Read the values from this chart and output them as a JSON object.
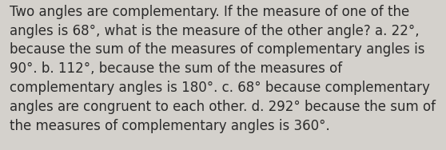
{
  "lines": [
    "Two angles are complementary. If the measure of one of the",
    "angles is 68°, what is the measure of the other angle? a. 22°,",
    "because the sum of the measures of complementary angles is",
    "90°. b. 112°, because the sum of the measures of",
    "complementary angles is 180°. c. 68° because complementary",
    "angles are congruent to each other. d. 292° because the sum of",
    "the measures of complementary angles is 360°."
  ],
  "background_color": "#d4d1cc",
  "text_color": "#2b2b2b",
  "font_size": 12.0,
  "fig_width": 5.58,
  "fig_height": 1.88,
  "dpi": 100
}
